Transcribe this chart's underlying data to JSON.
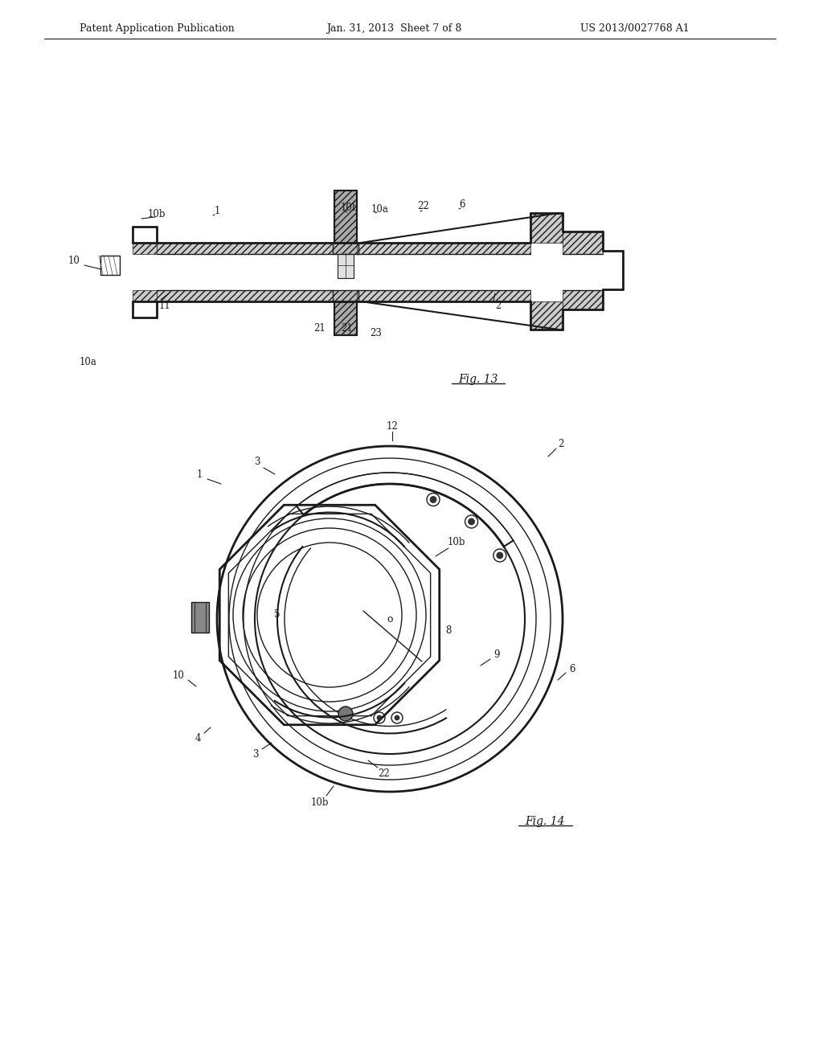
{
  "background_color": "#ffffff",
  "header_left": "Patent Application Publication",
  "header_mid": "Jan. 31, 2013  Sheet 7 of 8",
  "header_right": "US 2013/0027768 A1",
  "fig13_label": "Fig. 13",
  "fig14_label": "Fig. 14",
  "line_color": "#1a1a1a",
  "text_color": "#1a1a1a"
}
